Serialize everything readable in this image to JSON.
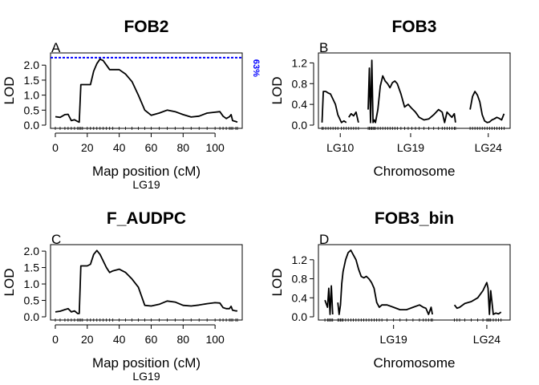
{
  "chart_data": [
    {
      "type": "line",
      "panel": "A",
      "title": "FOB2",
      "xlabel": "Map position (cM)",
      "sublabel": "LG19",
      "ylabel": "LOD",
      "xlim": [
        -3,
        117
      ],
      "ylim": [
        0,
        2.3
      ],
      "xticks": [
        "0",
        "20",
        "40",
        "60",
        "80",
        "100"
      ],
      "yticks": [
        "0.0",
        "0.5",
        "1.0",
        "1.5",
        "2.0"
      ],
      "threshold": {
        "value": 2.25,
        "label": "63%",
        "color": "#0000ff"
      },
      "line_color": "#000000",
      "x": [
        0,
        3,
        6,
        8,
        10,
        12,
        14,
        15,
        16,
        17,
        20,
        22,
        24,
        26,
        28,
        30,
        32,
        34,
        36,
        40,
        44,
        48,
        52,
        56,
        60,
        65,
        70,
        75,
        80,
        85,
        90,
        95,
        100,
        103,
        105,
        107,
        109,
        110,
        111,
        113,
        114
      ],
      "y": [
        0.28,
        0.26,
        0.35,
        0.36,
        0.15,
        0.18,
        0.12,
        0.1,
        1.35,
        1.35,
        1.35,
        1.35,
        1.8,
        2.05,
        2.2,
        2.15,
        2.0,
        1.85,
        1.85,
        1.85,
        1.7,
        1.45,
        1.0,
        0.5,
        0.33,
        0.4,
        0.5,
        0.45,
        0.35,
        0.27,
        0.3,
        0.4,
        0.43,
        0.45,
        0.3,
        0.22,
        0.28,
        0.35,
        0.15,
        0.12,
        0.1
      ]
    },
    {
      "type": "line",
      "panel": "B",
      "title": "FOB3",
      "xlabel": "Chromosome",
      "ylabel": "LOD",
      "ylim": [
        0,
        1.33
      ],
      "yticks": [
        "0.0",
        "0.4",
        "0.8",
        "1.2"
      ],
      "xtick_labels": [
        "LG10",
        "LG19",
        "LG24"
      ],
      "line_color": "#000000",
      "segments": [
        {
          "x": [
            0,
            1,
            3,
            5,
            7,
            9,
            11,
            13,
            16,
            18,
            20
          ],
          "y": [
            0.05,
            0.65,
            0.65,
            0.62,
            0.6,
            0.5,
            0.4,
            0.2,
            0.05,
            0.08,
            0.05
          ]
        },
        {
          "x": [
            22,
            24,
            26,
            28,
            30
          ],
          "y": [
            0.15,
            0.22,
            0.18,
            0.25,
            0.05
          ]
        },
        {
          "x": [
            38,
            39,
            40,
            41,
            42,
            43,
            44,
            46,
            48,
            50,
            52,
            54,
            56,
            58,
            60,
            62,
            65,
            68,
            71,
            74,
            77,
            80,
            84,
            88,
            92,
            96,
            99,
            101,
            103,
            105,
            107,
            109,
            110
          ],
          "y": [
            0.3,
            1.1,
            0.05,
            1.25,
            0.05,
            0.1,
            0.05,
            0.3,
            0.75,
            0.95,
            0.85,
            0.8,
            0.72,
            0.82,
            0.85,
            0.8,
            0.6,
            0.35,
            0.4,
            0.32,
            0.25,
            0.15,
            0.1,
            0.12,
            0.2,
            0.3,
            0.25,
            0.05,
            0.25,
            0.2,
            0.15,
            0.22,
            0.05
          ]
        },
        {
          "x": [
            122,
            124,
            126,
            128,
            130,
            132,
            134,
            136,
            138,
            140,
            142,
            144,
            146,
            148,
            150
          ],
          "y": [
            0.3,
            0.55,
            0.65,
            0.58,
            0.45,
            0.2,
            0.08,
            0.05,
            0.06,
            0.1,
            0.12,
            0.15,
            0.13,
            0.1,
            0.22
          ]
        }
      ],
      "xlim": [
        -3,
        155
      ],
      "tick_positions": [
        15,
        73,
        137
      ]
    },
    {
      "type": "line",
      "panel": "C",
      "title": "F_AUDPC",
      "xlabel": "Map position (cM)",
      "sublabel": "LG19",
      "ylabel": "LOD",
      "xlim": [
        -3,
        117
      ],
      "ylim": [
        0,
        2.1
      ],
      "xticks": [
        "0",
        "20",
        "40",
        "60",
        "80",
        "100"
      ],
      "yticks": [
        "0.0",
        "0.5",
        "1.0",
        "1.5",
        "2.0"
      ],
      "line_color": "#000000",
      "x": [
        0,
        3,
        6,
        8,
        10,
        12,
        14,
        15,
        16,
        17,
        20,
        22,
        24,
        26,
        28,
        30,
        32,
        34,
        36,
        40,
        44,
        48,
        52,
        56,
        60,
        65,
        70,
        75,
        80,
        85,
        90,
        95,
        100,
        103,
        105,
        107,
        109,
        110,
        111,
        113,
        114
      ],
      "y": [
        0.15,
        0.17,
        0.22,
        0.25,
        0.15,
        0.18,
        0.1,
        0.1,
        1.55,
        1.55,
        1.55,
        1.6,
        1.9,
        2.02,
        1.9,
        1.7,
        1.5,
        1.35,
        1.4,
        1.45,
        1.35,
        1.15,
        0.9,
        0.35,
        0.33,
        0.38,
        0.48,
        0.45,
        0.35,
        0.33,
        0.36,
        0.4,
        0.43,
        0.42,
        0.28,
        0.25,
        0.25,
        0.32,
        0.2,
        0.18,
        0.18
      ]
    },
    {
      "type": "line",
      "panel": "D",
      "title": "FOB3_bin",
      "xlabel": "Chromosome",
      "ylabel": "LOD",
      "ylim": [
        0,
        1.45
      ],
      "yticks": [
        "0.0",
        "0.4",
        "0.8",
        "1.2"
      ],
      "xtick_labels": [
        "LG19",
        "LG24"
      ],
      "line_color": "#000000",
      "segments": [
        {
          "x": [
            2,
            4,
            5,
            6,
            7,
            8
          ],
          "y": [
            0.35,
            0.2,
            0.6,
            0.05,
            0.65,
            0.05
          ]
        },
        {
          "x": [
            12,
            13,
            14,
            15,
            16,
            18,
            20,
            22,
            24,
            26,
            28,
            30,
            32,
            34,
            36,
            38,
            40,
            42,
            44,
            46,
            50,
            55,
            60,
            65,
            70,
            75,
            78,
            80,
            82,
            84,
            85
          ],
          "y": [
            0.3,
            0.05,
            0.25,
            0.7,
            0.95,
            1.2,
            1.35,
            1.4,
            1.3,
            1.2,
            1.0,
            0.85,
            0.82,
            0.85,
            0.8,
            0.72,
            0.6,
            0.3,
            0.2,
            0.25,
            0.25,
            0.2,
            0.15,
            0.15,
            0.2,
            0.25,
            0.2,
            0.18,
            0.05,
            0.2,
            0.05
          ]
        },
        {
          "x": [
            102,
            104,
            106,
            110,
            115,
            120,
            124,
            127,
            128,
            129,
            130,
            132,
            134,
            136,
            138
          ],
          "y": [
            0.25,
            0.18,
            0.2,
            0.28,
            0.32,
            0.4,
            0.55,
            0.72,
            0.6,
            0.05,
            0.55,
            0.05,
            0.08,
            0.06,
            0.1
          ]
        }
      ],
      "xlim": [
        -3,
        145
      ],
      "tick_positions": [
        55,
        127
      ]
    }
  ]
}
